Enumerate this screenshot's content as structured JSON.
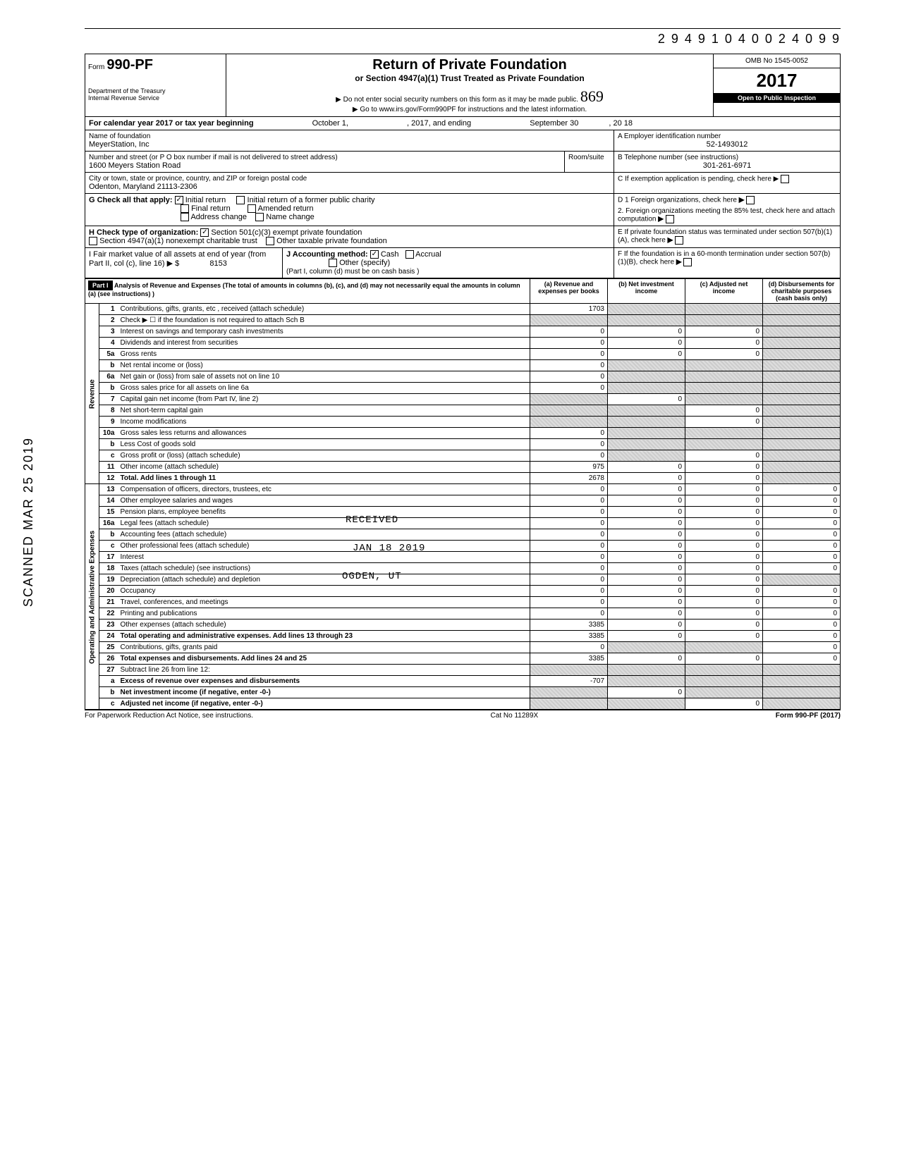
{
  "header_number": "2 9 4 9 1 0 4 0 0 2 4 0 9    9",
  "form": {
    "prefix": "Form",
    "number": "990-PF",
    "dept1": "Department of the Treasury",
    "dept2": "Internal Revenue Service",
    "title": "Return of Private Foundation",
    "subtitle": "or Section 4947(a)(1) Trust Treated as Private Foundation",
    "warn": "▶ Do not enter social security numbers on this form as it may be made public.",
    "goto": "▶ Go to www.irs.gov/Form990PF for instructions and the latest information.",
    "omb": "OMB No 1545-0052",
    "year": "2017",
    "inspection": "Open to Public Inspection",
    "hand_note": "869"
  },
  "period": {
    "label": "For calendar year 2017 or tax year beginning",
    "begin_month": "October 1,",
    "mid": ", 2017, and ending",
    "end_month": "September 30",
    "end_year": ", 20   18"
  },
  "name": {
    "label": "Name of foundation",
    "value": "MeyerStation, Inc"
  },
  "ein": {
    "label": "A  Employer identification number",
    "value": "52-1493012"
  },
  "address": {
    "label": "Number and street (or P O  box number if mail is not delivered to street address)",
    "value": "1600 Meyers Station Road",
    "room_label": "Room/suite"
  },
  "phone": {
    "label": "B  Telephone number (see instructions)",
    "value": "301-261-6971"
  },
  "city": {
    "label": "City or town, state or province, country, and ZIP or foreign postal code",
    "value": "Odenton, Maryland 21113-2306"
  },
  "boxC": "C  If exemption application is pending, check here ▶",
  "boxG": {
    "label": "G  Check all that apply:",
    "initial_return": "Initial return",
    "initial_former": "Initial return of a former public charity",
    "final_return": "Final return",
    "amended": "Amended return",
    "address_change": "Address change",
    "name_change": "Name change"
  },
  "boxD": {
    "d1": "D  1  Foreign organizations, check here",
    "d2": "2. Foreign organizations meeting the 85% test, check here and attach computation"
  },
  "boxH": {
    "label": "H  Check type of organization:",
    "opt1": "Section 501(c)(3) exempt private foundation",
    "opt2": "Section 4947(a)(1) nonexempt charitable trust",
    "opt3": "Other taxable private foundation"
  },
  "boxE": "E  If private foundation status was terminated under section 507(b)(1)(A), check here",
  "boxI": {
    "label": "I   Fair market value of all assets at end of year (from Part II, col (c), line 16) ▶  $",
    "value": "8153"
  },
  "boxJ": {
    "label": "J   Accounting method:",
    "cash": "Cash",
    "accrual": "Accrual",
    "other": "Other (specify)",
    "note": "(Part I, column (d) must be on cash basis )"
  },
  "boxF": "F  If the foundation is in a 60-month termination under section 507(b)(1)(B), check here",
  "part1": {
    "header": "Part I",
    "title": "Analysis of Revenue and Expenses",
    "note": "(The total of amounts in columns (b), (c), and (d) may not necessarily equal the amounts in column (a) (see instructions) )",
    "col_a": "(a) Revenue and expenses per books",
    "col_b": "(b) Net investment income",
    "col_c": "(c) Adjusted net income",
    "col_d": "(d) Disbursements for charitable purposes (cash basis only)"
  },
  "section_revenue": "Revenue",
  "section_expenses": "Operating and Administrative Expenses",
  "lines": [
    {
      "n": "1",
      "desc": "Contributions, gifts, grants, etc , received (attach schedule)",
      "a": "1703",
      "b": "",
      "c": "",
      "d": "",
      "sa": false,
      "sb": true,
      "sc": true,
      "sd": true
    },
    {
      "n": "2",
      "desc": "Check ▶ ☐ if the foundation is not required to attach Sch B",
      "a": "",
      "b": "",
      "c": "",
      "d": "",
      "sa": true,
      "sb": true,
      "sc": true,
      "sd": true
    },
    {
      "n": "3",
      "desc": "Interest on savings and temporary cash investments",
      "a": "0",
      "b": "0",
      "c": "0",
      "d": "",
      "sa": false,
      "sb": false,
      "sc": false,
      "sd": true
    },
    {
      "n": "4",
      "desc": "Dividends and interest from securities",
      "a": "0",
      "b": "0",
      "c": "0",
      "d": "",
      "sa": false,
      "sb": false,
      "sc": false,
      "sd": true
    },
    {
      "n": "5a",
      "desc": "Gross rents",
      "a": "0",
      "b": "0",
      "c": "0",
      "d": "",
      "sa": false,
      "sb": false,
      "sc": false,
      "sd": true
    },
    {
      "n": "b",
      "desc": "Net rental income or (loss)",
      "a": "0",
      "b": "",
      "c": "",
      "d": "",
      "sa": false,
      "sb": true,
      "sc": true,
      "sd": true
    },
    {
      "n": "6a",
      "desc": "Net gain or (loss) from sale of assets not on line 10",
      "a": "0",
      "b": "",
      "c": "",
      "d": "",
      "sa": false,
      "sb": true,
      "sc": true,
      "sd": true
    },
    {
      "n": "b",
      "desc": "Gross sales price for all assets on line 6a",
      "a": "0",
      "b": "",
      "c": "",
      "d": "",
      "sa": false,
      "sb": true,
      "sc": true,
      "sd": true
    },
    {
      "n": "7",
      "desc": "Capital gain net income (from Part IV, line 2)",
      "a": "",
      "b": "0",
      "c": "",
      "d": "",
      "sa": true,
      "sb": false,
      "sc": true,
      "sd": true
    },
    {
      "n": "8",
      "desc": "Net short-term capital gain",
      "a": "",
      "b": "",
      "c": "0",
      "d": "",
      "sa": true,
      "sb": true,
      "sc": false,
      "sd": true
    },
    {
      "n": "9",
      "desc": "Income modifications",
      "a": "",
      "b": "",
      "c": "0",
      "d": "",
      "sa": true,
      "sb": true,
      "sc": false,
      "sd": true
    },
    {
      "n": "10a",
      "desc": "Gross sales less returns and allowances",
      "a": "0",
      "b": "",
      "c": "",
      "d": "",
      "sa": false,
      "sb": true,
      "sc": true,
      "sd": true
    },
    {
      "n": "b",
      "desc": "Less  Cost of goods sold",
      "a": "0",
      "b": "",
      "c": "",
      "d": "",
      "sa": false,
      "sb": true,
      "sc": true,
      "sd": true
    },
    {
      "n": "c",
      "desc": "Gross profit or (loss) (attach schedule)",
      "a": "0",
      "b": "",
      "c": "0",
      "d": "",
      "sa": false,
      "sb": true,
      "sc": false,
      "sd": true
    },
    {
      "n": "11",
      "desc": "Other income (attach schedule)",
      "a": "975",
      "b": "0",
      "c": "0",
      "d": "",
      "sa": false,
      "sb": false,
      "sc": false,
      "sd": true
    },
    {
      "n": "12",
      "desc": "Total. Add lines 1 through 11",
      "a": "2678",
      "b": "0",
      "c": "0",
      "d": "",
      "sa": false,
      "sb": false,
      "sc": false,
      "sd": true
    },
    {
      "n": "13",
      "desc": "Compensation of officers, directors, trustees, etc",
      "a": "0",
      "b": "0",
      "c": "0",
      "d": "0",
      "sa": false,
      "sb": false,
      "sc": false,
      "sd": false
    },
    {
      "n": "14",
      "desc": "Other employee salaries and wages",
      "a": "0",
      "b": "0",
      "c": "0",
      "d": "0",
      "sa": false,
      "sb": false,
      "sc": false,
      "sd": false
    },
    {
      "n": "15",
      "desc": "Pension plans, employee benefits",
      "a": "0",
      "b": "0",
      "c": "0",
      "d": "0",
      "sa": false,
      "sb": false,
      "sc": false,
      "sd": false
    },
    {
      "n": "16a",
      "desc": "Legal fees (attach schedule)",
      "a": "0",
      "b": "0",
      "c": "0",
      "d": "0",
      "sa": false,
      "sb": false,
      "sc": false,
      "sd": false
    },
    {
      "n": "b",
      "desc": "Accounting fees (attach schedule)",
      "a": "0",
      "b": "0",
      "c": "0",
      "d": "0",
      "sa": false,
      "sb": false,
      "sc": false,
      "sd": false
    },
    {
      "n": "c",
      "desc": "Other professional fees (attach schedule)",
      "a": "0",
      "b": "0",
      "c": "0",
      "d": "0",
      "sa": false,
      "sb": false,
      "sc": false,
      "sd": false
    },
    {
      "n": "17",
      "desc": "Interest",
      "a": "0",
      "b": "0",
      "c": "0",
      "d": "0",
      "sa": false,
      "sb": false,
      "sc": false,
      "sd": false
    },
    {
      "n": "18",
      "desc": "Taxes (attach schedule) (see instructions)",
      "a": "0",
      "b": "0",
      "c": "0",
      "d": "0",
      "sa": false,
      "sb": false,
      "sc": false,
      "sd": false
    },
    {
      "n": "19",
      "desc": "Depreciation (attach schedule) and depletion",
      "a": "0",
      "b": "0",
      "c": "0",
      "d": "",
      "sa": false,
      "sb": false,
      "sc": false,
      "sd": true
    },
    {
      "n": "20",
      "desc": "Occupancy",
      "a": "0",
      "b": "0",
      "c": "0",
      "d": "0",
      "sa": false,
      "sb": false,
      "sc": false,
      "sd": false
    },
    {
      "n": "21",
      "desc": "Travel, conferences, and meetings",
      "a": "0",
      "b": "0",
      "c": "0",
      "d": "0",
      "sa": false,
      "sb": false,
      "sc": false,
      "sd": false
    },
    {
      "n": "22",
      "desc": "Printing and publications",
      "a": "0",
      "b": "0",
      "c": "0",
      "d": "0",
      "sa": false,
      "sb": false,
      "sc": false,
      "sd": false
    },
    {
      "n": "23",
      "desc": "Other expenses (attach schedule)",
      "a": "3385",
      "b": "0",
      "c": "0",
      "d": "0",
      "sa": false,
      "sb": false,
      "sc": false,
      "sd": false
    },
    {
      "n": "24",
      "desc": "Total operating and administrative expenses. Add lines 13 through 23",
      "a": "3385",
      "b": "0",
      "c": "0",
      "d": "0",
      "sa": false,
      "sb": false,
      "sc": false,
      "sd": false
    },
    {
      "n": "25",
      "desc": "Contributions, gifts, grants paid",
      "a": "0",
      "b": "",
      "c": "",
      "d": "0",
      "sa": false,
      "sb": true,
      "sc": true,
      "sd": false
    },
    {
      "n": "26",
      "desc": "Total expenses and disbursements. Add lines 24 and 25",
      "a": "3385",
      "b": "0",
      "c": "0",
      "d": "0",
      "sa": false,
      "sb": false,
      "sc": false,
      "sd": false
    },
    {
      "n": "27",
      "desc": "Subtract line 26 from line 12:",
      "a": "",
      "b": "",
      "c": "",
      "d": "",
      "sa": true,
      "sb": true,
      "sc": true,
      "sd": true
    },
    {
      "n": "a",
      "desc": "Excess of revenue over expenses and disbursements",
      "a": "-707",
      "b": "",
      "c": "",
      "d": "",
      "sa": false,
      "sb": true,
      "sc": true,
      "sd": true
    },
    {
      "n": "b",
      "desc": "Net investment income (if negative, enter -0-)",
      "a": "",
      "b": "0",
      "c": "",
      "d": "",
      "sa": true,
      "sb": false,
      "sc": true,
      "sd": true
    },
    {
      "n": "c",
      "desc": "Adjusted net income (if negative, enter -0-)",
      "a": "",
      "b": "",
      "c": "0",
      "d": "",
      "sa": true,
      "sb": true,
      "sc": false,
      "sd": true
    }
  ],
  "footer": {
    "left": "For Paperwork Reduction Act Notice, see instructions.",
    "center": "Cat No  11289X",
    "right": "Form 990-PF (2017)"
  },
  "scanned": "SCANNED MAR 25 2019",
  "stamps": {
    "received": "RECEIVED",
    "date": "JAN 18 2019",
    "ogden": "OGDEN, UT"
  },
  "colors": {
    "shaded": "#cccccc",
    "black": "#000000",
    "white": "#ffffff"
  }
}
